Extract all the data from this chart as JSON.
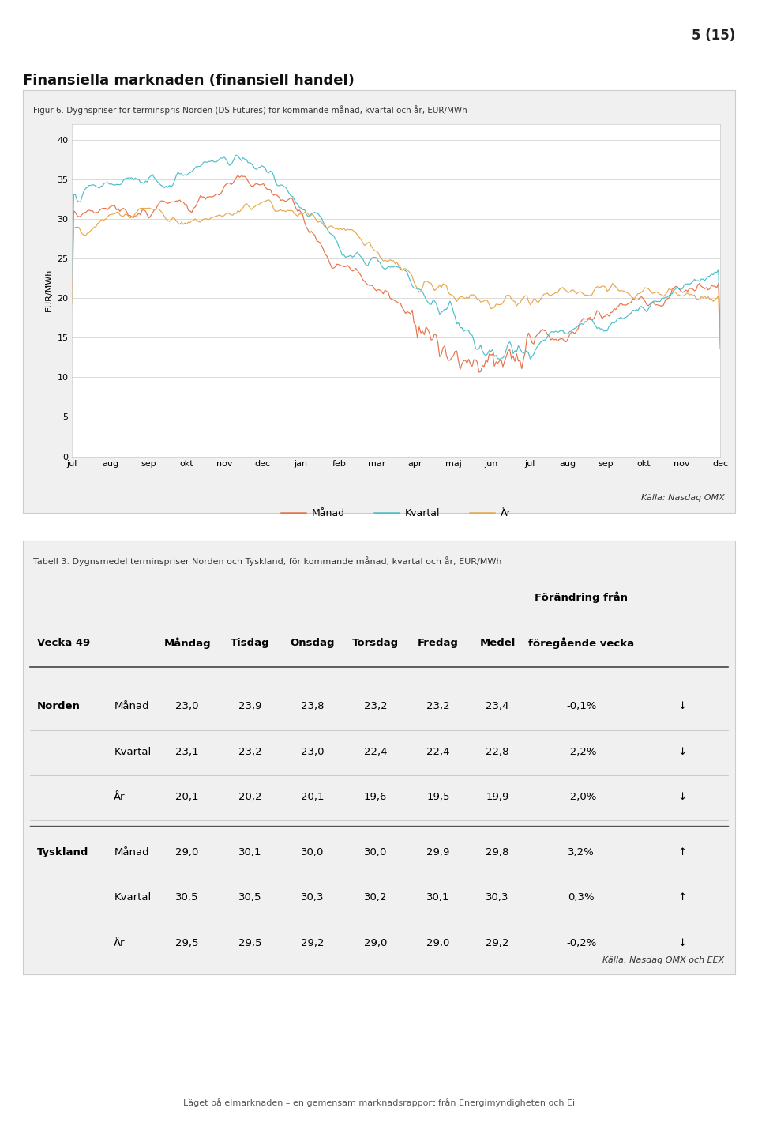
{
  "page_number": "5 (15)",
  "main_title": "Finansiella marknaden (finansiell handel)",
  "fig_title": "Figur 6. Dygnspriser för terminspris Norden (DS Futures) för kommande månad, kvartal och år, EUR/MWh",
  "fig_source": "Källa: Nasdaq OMX",
  "fig_ylabel": "EUR/MWh",
  "fig_yticks": [
    0,
    5,
    10,
    15,
    20,
    25,
    30,
    35,
    40
  ],
  "fig_xlabels": [
    "jul",
    "aug",
    "sep",
    "okt",
    "nov",
    "dec",
    "jan",
    "feb",
    "mar",
    "apr",
    "maj",
    "jun",
    "jul",
    "aug",
    "sep",
    "okt",
    "nov",
    "dec"
  ],
  "legend_labels": [
    "Månad",
    "Kvartal",
    "År"
  ],
  "manad_color": "#E8734A",
  "kvartal_color": "#4BBFCA",
  "ar_color": "#E8A84A",
  "table_title": "Tabell 3. Dygnsmedel terminspriser Norden och Tyskland, för kommande månad, kvartal och år, EUR/MWh",
  "table_source": "Källa: Nasdaq OMX och EEX",
  "table_week": "Vecka 49",
  "table_rows": [
    [
      "Norden",
      "Månad",
      "23,0",
      "23,9",
      "23,8",
      "23,2",
      "23,2",
      "23,4",
      "-0,1%",
      "↓"
    ],
    [
      "Norden",
      "Kvartal",
      "23,1",
      "23,2",
      "23,0",
      "22,4",
      "22,4",
      "22,8",
      "-2,2%",
      "↓"
    ],
    [
      "Norden",
      "År",
      "20,1",
      "20,2",
      "20,1",
      "19,6",
      "19,5",
      "19,9",
      "-2,0%",
      "↓"
    ],
    [
      "Tyskland",
      "Månad",
      "29,0",
      "30,1",
      "30,0",
      "30,0",
      "29,9",
      "29,8",
      "3,2%",
      "↑"
    ],
    [
      "Tyskland",
      "Kvartal",
      "30,5",
      "30,5",
      "30,3",
      "30,2",
      "30,1",
      "30,3",
      "0,3%",
      "↑"
    ],
    [
      "Tyskland",
      "År",
      "29,5",
      "29,5",
      "29,2",
      "29,0",
      "29,0",
      "29,2",
      "-0,2%",
      "↓"
    ]
  ],
  "footer": "Läget på elmarknaden – en gemensam marknadsrapport från Energimyndigheten och Ei",
  "bg_color": "#ffffff",
  "box_bg": "#f0f0f0",
  "box_border": "#cccccc"
}
